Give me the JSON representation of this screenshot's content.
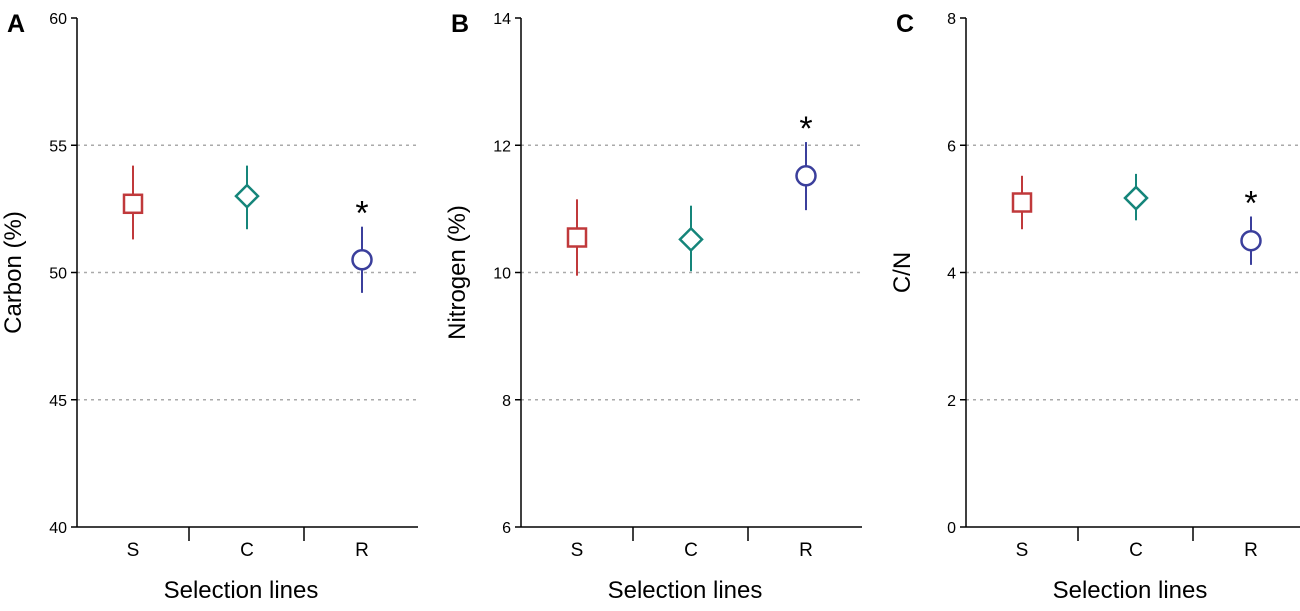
{
  "colors": {
    "S": "#c0393b",
    "C": "#15857a",
    "R": "#3b3f9c",
    "grid": "#aaaaaa",
    "axis": "#000000"
  },
  "chart_data": [
    {
      "panel_label": "A",
      "type": "scatter",
      "ylabel": "Carbon (%)",
      "xlabel": "Selection lines",
      "categories": [
        "S",
        "C",
        "R"
      ],
      "ylim": [
        40,
        60
      ],
      "yticks": [
        40,
        45,
        50,
        55,
        60
      ],
      "grid_lines": [
        45,
        50,
        55
      ],
      "points": [
        {
          "category": "S",
          "marker": "square",
          "mean": 52.7,
          "lower": 51.3,
          "upper": 54.2
        },
        {
          "category": "C",
          "marker": "diamond",
          "mean": 53.0,
          "lower": 51.7,
          "upper": 54.2
        },
        {
          "category": "R",
          "marker": "circle",
          "mean": 50.5,
          "lower": 49.2,
          "upper": 51.8,
          "annotation": "*"
        }
      ]
    },
    {
      "panel_label": "B",
      "type": "scatter",
      "ylabel": "Nitrogen (%)",
      "xlabel": "Selection lines",
      "categories": [
        "S",
        "C",
        "R"
      ],
      "ylim": [
        6,
        14
      ],
      "yticks": [
        6,
        8,
        10,
        12,
        14
      ],
      "grid_lines": [
        8,
        10,
        12
      ],
      "points": [
        {
          "category": "S",
          "marker": "square",
          "mean": 10.55,
          "lower": 9.95,
          "upper": 11.15
        },
        {
          "category": "C",
          "marker": "diamond",
          "mean": 10.52,
          "lower": 10.02,
          "upper": 11.05
        },
        {
          "category": "R",
          "marker": "circle",
          "mean": 11.52,
          "lower": 10.98,
          "upper": 12.05,
          "annotation": "*"
        }
      ]
    },
    {
      "panel_label": "C",
      "type": "scatter",
      "ylabel": "C/N",
      "xlabel": "Selection lines",
      "categories": [
        "S",
        "C",
        "R"
      ],
      "ylim": [
        0,
        8
      ],
      "yticks": [
        0,
        2,
        4,
        6,
        8
      ],
      "grid_lines": [
        2,
        4,
        6
      ],
      "points": [
        {
          "category": "S",
          "marker": "square",
          "mean": 5.1,
          "lower": 4.68,
          "upper": 5.52
        },
        {
          "category": "C",
          "marker": "diamond",
          "mean": 5.17,
          "lower": 4.82,
          "upper": 5.55
        },
        {
          "category": "R",
          "marker": "circle",
          "mean": 4.5,
          "lower": 4.12,
          "upper": 4.88,
          "annotation": "*"
        }
      ]
    }
  ]
}
